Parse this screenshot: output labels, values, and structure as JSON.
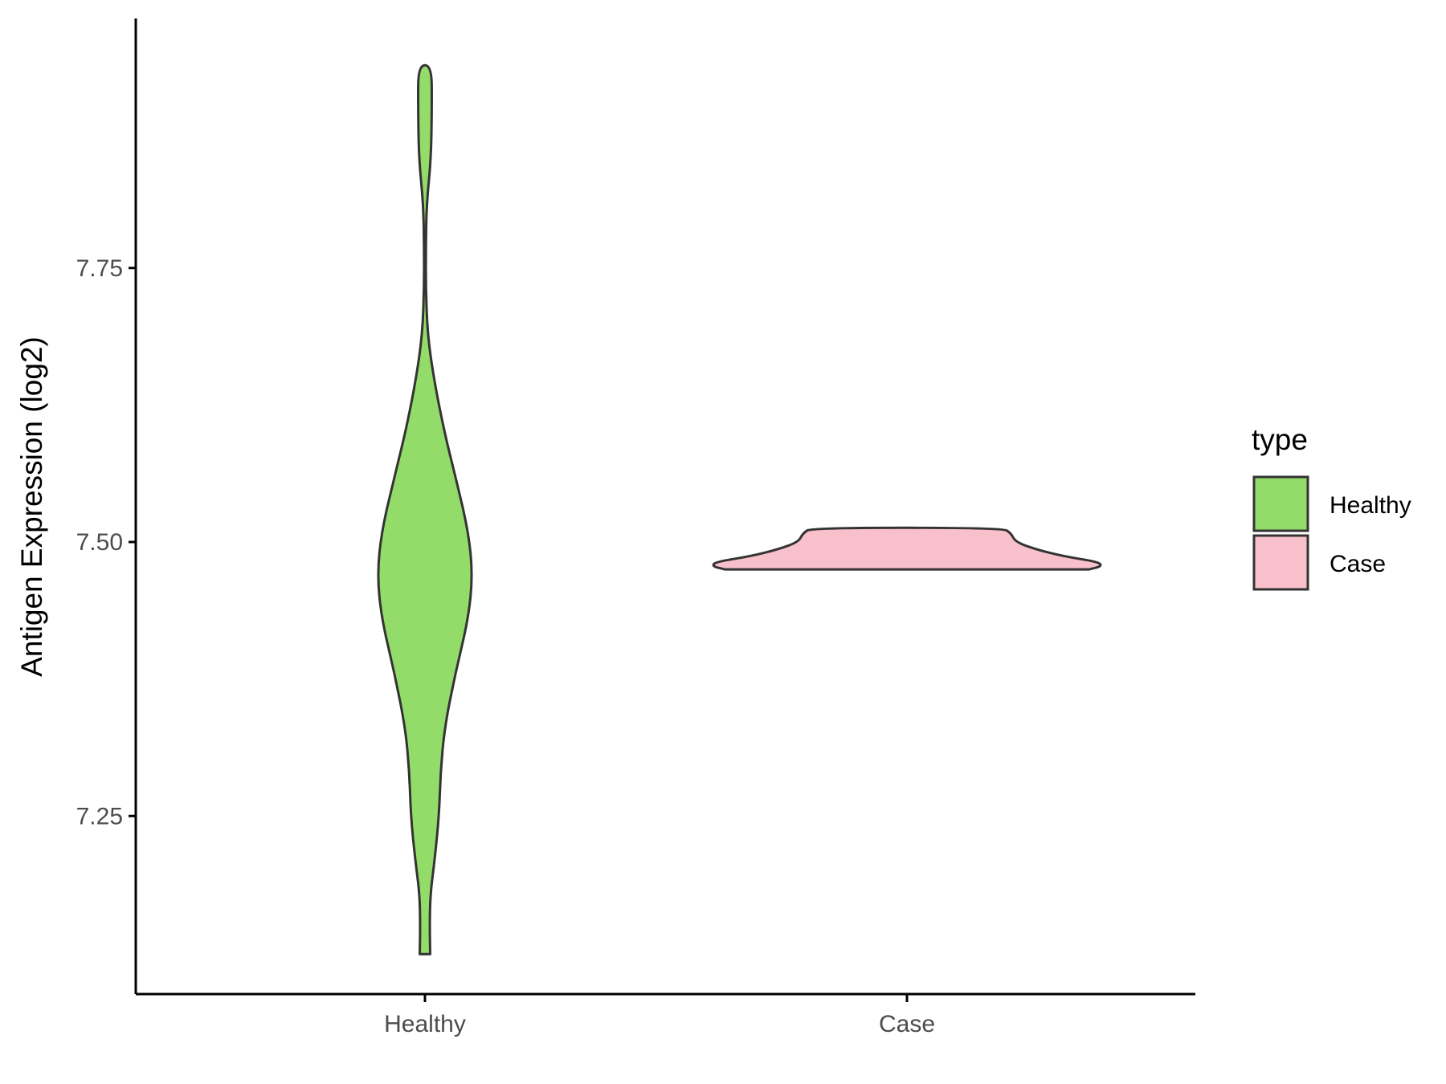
{
  "chart_data": {
    "type": "violin",
    "title": "",
    "xlabel": "",
    "ylabel": "Antigen Expression (log2)",
    "ylim": [
      7.08,
      7.97
    ],
    "yticks": [
      7.25,
      7.5,
      7.75
    ],
    "ytick_labels": [
      "7.25",
      "7.50",
      "7.75"
    ],
    "categories": [
      "Healthy",
      "Case"
    ],
    "grid": false,
    "legend": {
      "title": "type",
      "position": "right",
      "entries": [
        {
          "label": "Healthy",
          "color": "#93dc6a"
        },
        {
          "label": "Case",
          "color": "#f8c0cb"
        }
      ]
    },
    "series": [
      {
        "name": "Healthy",
        "color": "#93dc6a",
        "min": 7.124,
        "max": 7.935,
        "density": [
          [
            7.124,
            0.024
          ],
          [
            7.15,
            0.022
          ],
          [
            7.18,
            0.025
          ],
          [
            7.21,
            0.045
          ],
          [
            7.25,
            0.065
          ],
          [
            7.29,
            0.072
          ],
          [
            7.33,
            0.09
          ],
          [
            7.38,
            0.14
          ],
          [
            7.43,
            0.2
          ],
          [
            7.47,
            0.22
          ],
          [
            7.51,
            0.2
          ],
          [
            7.56,
            0.14
          ],
          [
            7.6,
            0.09
          ],
          [
            7.65,
            0.04
          ],
          [
            7.69,
            0.012
          ],
          [
            7.73,
            0.004
          ],
          [
            7.77,
            0.004
          ],
          [
            7.81,
            0.008
          ],
          [
            7.85,
            0.028
          ],
          [
            7.9,
            0.032
          ],
          [
            7.935,
            0.03
          ]
        ]
      },
      {
        "name": "Case",
        "color": "#f8c0cb",
        "min": 7.475,
        "max": 7.513,
        "density": [
          [
            7.475,
            0.84
          ],
          [
            7.478,
            0.9
          ],
          [
            7.482,
            0.88
          ],
          [
            7.487,
            0.72
          ],
          [
            7.493,
            0.6
          ],
          [
            7.5,
            0.5
          ],
          [
            7.508,
            0.48
          ],
          [
            7.513,
            0.44
          ]
        ]
      }
    ]
  }
}
